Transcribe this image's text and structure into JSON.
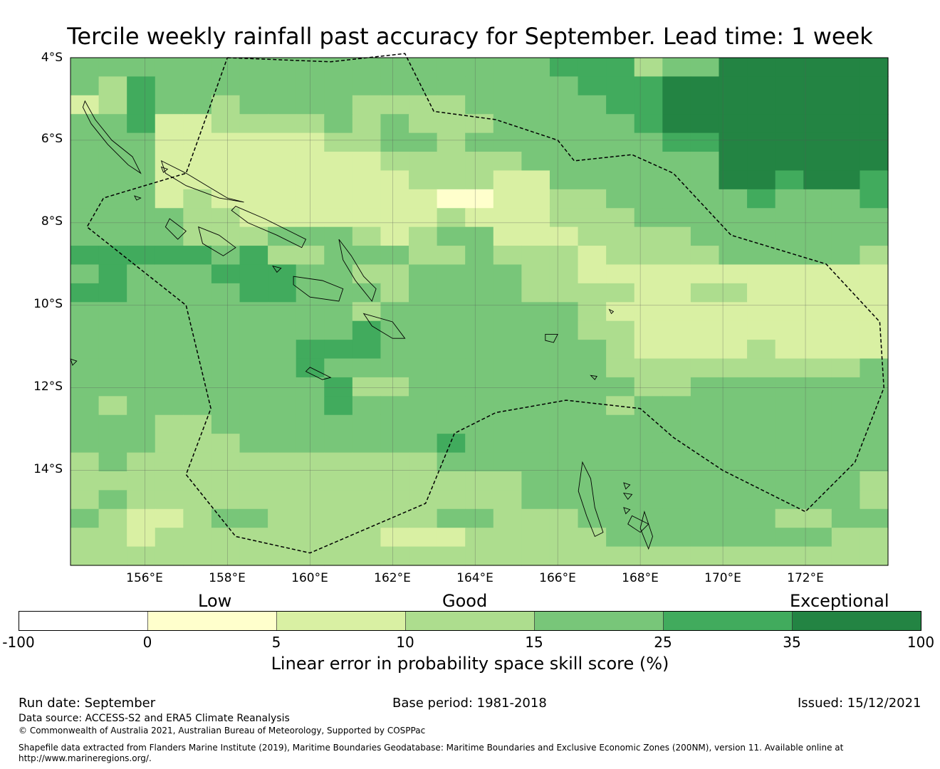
{
  "title": "Tercile weekly rainfall past accuracy for September. Lead time: 1 week",
  "map": {
    "lon_range": [
      154.2,
      174.0
    ],
    "lat_range": [
      -16.3,
      -4.0
    ],
    "grid_cell_deg": 0.833,
    "lat_labels": [
      "4°S",
      "6°S",
      "8°S",
      "10°S",
      "12°S",
      "14°S"
    ],
    "lon_labels": [
      "156°E",
      "158°E",
      "160°E",
      "162°E",
      "164°E",
      "166°E",
      "168°E",
      "170°E",
      "172°E"
    ],
    "lat_values": [
      -4,
      -6,
      -8,
      -10,
      -12,
      -14
    ],
    "lon_values": [
      156,
      158,
      160,
      162,
      164,
      166,
      168,
      170,
      172
    ],
    "skill_grid_classes": [
      "44444444444444444555344666666",
      "43544444444444444455566666666",
      "23544344443333444445566666666",
      "44522333343433344444566666666",
      "44422222233443444444455666666",
      "44422222222333334444444666666",
      "44422222222233322444444665665",
      "44423222222221122334444454445",
      "44443322222223222333444444444",
      "44443334443234422233334444444",
      "55555453344433433323333444443",
      "45444555443344443322222222222",
      "55444455444344443333223322222",
      "44444444443444444432222222222",
      "44444444445444444433222222222",
      "44444444555444444443222232222",
      "44444444544444444443333333334",
      "44444444453344444444334444444",
      "43444444454444444443444444444",
      "44433444444444444444444444444",
      "44433344444445444444444444444",
      "34333333333334444444444444444",
      "33333333333333334444444444443",
      "34333333333333334444444444443",
      "43223443333334433344444443344",
      "33233333333222333334444444433",
      "33333333333333333333333333333"
    ],
    "eez_boundary": [
      [
        158.0,
        -4.0
      ],
      [
        160.5,
        -4.1
      ],
      [
        162.3,
        -3.9
      ],
      [
        163.0,
        -5.3
      ],
      [
        164.5,
        -5.5
      ],
      [
        166.0,
        -6.0
      ],
      [
        166.4,
        -6.5
      ],
      [
        167.8,
        -6.35
      ],
      [
        168.8,
        -6.8
      ],
      [
        170.2,
        -8.3
      ],
      [
        172.5,
        -9.0
      ],
      [
        173.8,
        -10.4
      ],
      [
        173.9,
        -12.0
      ],
      [
        173.2,
        -13.8
      ],
      [
        172.0,
        -15.0
      ],
      [
        170.0,
        -14.0
      ],
      [
        168.8,
        -13.2
      ],
      [
        168.0,
        -12.5
      ],
      [
        166.2,
        -12.3
      ],
      [
        164.5,
        -12.6
      ],
      [
        163.5,
        -13.1
      ],
      [
        162.8,
        -14.8
      ],
      [
        160.0,
        -16.0
      ],
      [
        158.2,
        -15.6
      ],
      [
        157.0,
        -14.1
      ],
      [
        157.6,
        -12.5
      ],
      [
        157.0,
        -10.0
      ],
      [
        154.6,
        -8.1
      ],
      [
        155.0,
        -7.4
      ],
      [
        157.0,
        -6.8
      ],
      [
        158.0,
        -4.0
      ]
    ],
    "islands": [
      [
        [
          154.55,
          -5.05
        ],
        [
          154.8,
          -5.5
        ],
        [
          155.2,
          -6.0
        ],
        [
          155.7,
          -6.4
        ],
        [
          155.9,
          -6.8
        ],
        [
          155.6,
          -6.6
        ],
        [
          155.1,
          -6.1
        ],
        [
          154.7,
          -5.6
        ],
        [
          154.5,
          -5.2
        ]
      ],
      [
        [
          156.4,
          -6.5
        ],
        [
          157.0,
          -6.8
        ],
        [
          157.5,
          -7.1
        ],
        [
          158.0,
          -7.4
        ],
        [
          158.4,
          -7.5
        ],
        [
          157.8,
          -7.4
        ],
        [
          157.0,
          -7.1
        ],
        [
          156.5,
          -6.8
        ]
      ],
      [
        [
          158.2,
          -7.6
        ],
        [
          158.9,
          -7.9
        ],
        [
          159.5,
          -8.2
        ],
        [
          159.9,
          -8.4
        ],
        [
          159.8,
          -8.6
        ],
        [
          159.2,
          -8.3
        ],
        [
          158.5,
          -8.0
        ],
        [
          158.1,
          -7.7
        ]
      ],
      [
        [
          157.3,
          -8.1
        ],
        [
          157.8,
          -8.3
        ],
        [
          158.2,
          -8.6
        ],
        [
          157.9,
          -8.8
        ],
        [
          157.4,
          -8.5
        ]
      ],
      [
        [
          156.6,
          -7.9
        ],
        [
          157.0,
          -8.2
        ],
        [
          156.8,
          -8.4
        ],
        [
          156.5,
          -8.1
        ]
      ],
      [
        [
          160.7,
          -8.4
        ],
        [
          161.0,
          -8.8
        ],
        [
          161.3,
          -9.3
        ],
        [
          161.6,
          -9.6
        ],
        [
          161.5,
          -9.9
        ],
        [
          161.1,
          -9.4
        ],
        [
          160.8,
          -8.9
        ]
      ],
      [
        [
          159.6,
          -9.3
        ],
        [
          160.3,
          -9.4
        ],
        [
          160.8,
          -9.6
        ],
        [
          160.7,
          -9.9
        ],
        [
          160.0,
          -9.8
        ],
        [
          159.6,
          -9.5
        ]
      ],
      [
        [
          161.3,
          -10.2
        ],
        [
          162.0,
          -10.4
        ],
        [
          162.3,
          -10.8
        ],
        [
          162.0,
          -10.8
        ],
        [
          161.5,
          -10.5
        ]
      ],
      [
        [
          166.6,
          -13.8
        ],
        [
          166.8,
          -14.2
        ],
        [
          166.9,
          -14.9
        ],
        [
          167.1,
          -15.5
        ],
        [
          166.9,
          -15.6
        ],
        [
          166.7,
          -15.1
        ],
        [
          166.5,
          -14.5
        ]
      ],
      [
        [
          167.8,
          -15.1
        ],
        [
          168.2,
          -15.3
        ],
        [
          168.0,
          -15.5
        ],
        [
          167.7,
          -15.3
        ]
      ],
      [
        [
          168.1,
          -15.0
        ],
        [
          168.3,
          -15.6
        ],
        [
          168.2,
          -15.9
        ],
        [
          168.0,
          -15.4
        ]
      ],
      [
        [
          159.1,
          -9.05
        ],
        [
          159.3,
          -9.1
        ],
        [
          159.2,
          -9.2
        ]
      ],
      [
        [
          160.0,
          -11.5
        ],
        [
          160.5,
          -11.75
        ],
        [
          160.3,
          -11.8
        ],
        [
          159.9,
          -11.6
        ]
      ],
      [
        [
          165.7,
          -10.7
        ],
        [
          166.0,
          -10.7
        ],
        [
          165.9,
          -10.9
        ],
        [
          165.7,
          -10.85
        ]
      ],
      [
        [
          154.2,
          -11.3
        ],
        [
          154.35,
          -11.35
        ],
        [
          154.25,
          -11.45
        ]
      ],
      [
        [
          167.6,
          -14.3
        ],
        [
          167.75,
          -14.35
        ],
        [
          167.65,
          -14.45
        ]
      ],
      [
        [
          167.25,
          -10.1
        ],
        [
          167.35,
          -10.15
        ],
        [
          167.3,
          -10.2
        ]
      ],
      [
        [
          166.8,
          -11.7
        ],
        [
          166.95,
          -11.72
        ],
        [
          166.9,
          -11.8
        ]
      ],
      [
        [
          156.4,
          -6.65
        ],
        [
          156.55,
          -6.7
        ],
        [
          156.45,
          -6.78
        ]
      ],
      [
        [
          155.75,
          -7.35
        ],
        [
          155.9,
          -7.4
        ],
        [
          155.8,
          -7.45
        ]
      ],
      [
        [
          167.6,
          -14.55
        ],
        [
          167.8,
          -14.58
        ],
        [
          167.7,
          -14.7
        ]
      ],
      [
        [
          167.6,
          -14.9
        ],
        [
          167.75,
          -14.95
        ],
        [
          167.65,
          -15.05
        ]
      ]
    ]
  },
  "colorbar": {
    "bins": [
      {
        "from": -100,
        "to": 0,
        "color": "#ffffff"
      },
      {
        "from": 0,
        "to": 5,
        "color": "#ffffcc"
      },
      {
        "from": 5,
        "to": 10,
        "color": "#d9f0a3"
      },
      {
        "from": 10,
        "to": 15,
        "color": "#addd8e"
      },
      {
        "from": 15,
        "to": 25,
        "color": "#78c679"
      },
      {
        "from": 25,
        "to": 35,
        "color": "#41ab5d"
      },
      {
        "from": 35,
        "to": 100,
        "color": "#238443"
      }
    ],
    "tick_labels": [
      "-100",
      "0",
      "5",
      "10",
      "15",
      "25",
      "35",
      "100"
    ],
    "categories": {
      "low": "Low",
      "good": "Good",
      "exceptional": "Exceptional"
    },
    "title": "Linear error in probability space skill score (%)"
  },
  "footer": {
    "run_date": "Run date: September",
    "base_period": "Base period: 1981-2018",
    "issued": "Issued: 15/12/2021",
    "data_source": "Data source: ACCESS-S2 and ERA5 Climate Reanalysis",
    "copyright": "© Commonwealth of Australia 2021, Australian Bureau of Meteorology, Supported by COSPPac",
    "shapefile_line1": "Shapefile data extracted from Flanders Marine Institute (2019), Maritime Boundaries Geodatabase: Maritime Boundaries and Exclusive Economic Zones (200NM), version 11. Available online at",
    "shapefile_line2": "http://www.marineregions.org/."
  }
}
